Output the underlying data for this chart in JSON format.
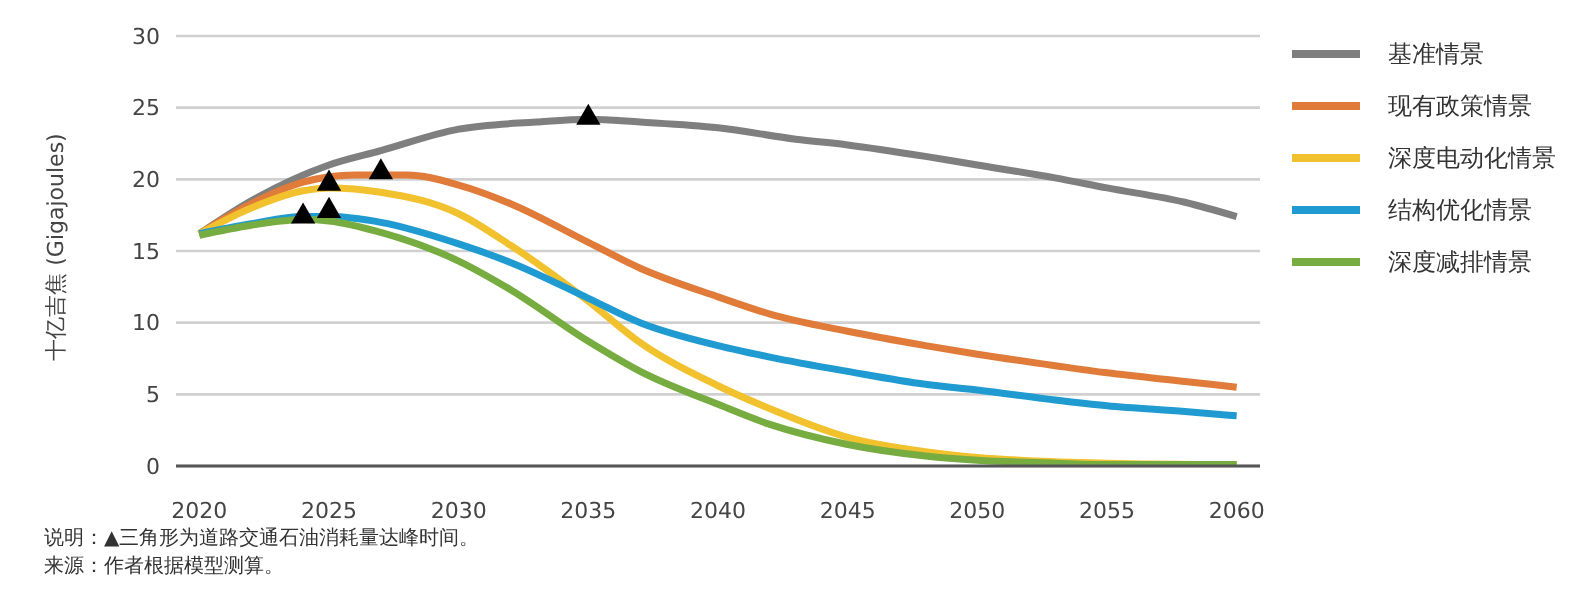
{
  "chart_data": {
    "type": "line",
    "ylabel": "十亿吉焦 (Gigajoules)",
    "xlim": [
      2019.1,
      2060.9
    ],
    "xticks": [
      2020,
      2025,
      2030,
      2035,
      2040,
      2045,
      2050,
      2055,
      2060
    ],
    "ylim": [
      0,
      30
    ],
    "yticks": [
      0,
      5,
      10,
      15,
      20,
      25,
      30
    ],
    "grid": "y",
    "legend": "right",
    "series": [
      {
        "name": "基准情景",
        "color": "#7f7f7f",
        "marker": "none",
        "x": [
          2020,
          2022,
          2025,
          2027,
          2030,
          2033,
          2035,
          2037,
          2040,
          2043,
          2045,
          2048,
          2050,
          2053,
          2055,
          2058,
          2060
        ],
        "values": [
          16.2,
          18.5,
          21,
          22,
          23.5,
          24,
          24.2,
          24,
          23.6,
          22.8,
          22.4,
          21.6,
          21,
          20.1,
          19.4,
          18.4,
          17.4
        ]
      },
      {
        "name": "现有政策情景",
        "color": "#e07b39",
        "marker": "none",
        "x": [
          2020,
          2022,
          2024,
          2026,
          2028,
          2030,
          2032,
          2035,
          2037,
          2040,
          2042,
          2045,
          2048,
          2050,
          2053,
          2055,
          2058,
          2060
        ],
        "values": [
          16.2,
          18.3,
          19.8,
          20.3,
          20.3,
          19.6,
          18.3,
          15.6,
          13.8,
          11.8,
          10.6,
          9.4,
          8.4,
          7.8,
          7,
          6.5,
          5.9,
          5.5
        ]
      },
      {
        "name": "深度电动化情景",
        "color": "#f2c12e",
        "marker": "none",
        "x": [
          2020,
          2022,
          2024,
          2025,
          2027,
          2030,
          2032,
          2035,
          2037,
          2040,
          2042,
          2045,
          2048,
          2050,
          2053,
          2055,
          2060
        ],
        "values": [
          16.2,
          18,
          19.2,
          19.4,
          19.1,
          17.6,
          15.4,
          11.5,
          8.6,
          5.6,
          4,
          2,
          1,
          0.6,
          0.3,
          0.2,
          0.1
        ]
      },
      {
        "name": "结构优化情景",
        "color": "#1f9bd1",
        "marker": "none",
        "x": [
          2020,
          2022,
          2024,
          2025,
          2027,
          2030,
          2032,
          2035,
          2037,
          2040,
          2042,
          2045,
          2048,
          2050,
          2053,
          2055,
          2058,
          2060
        ],
        "values": [
          16.2,
          16.9,
          17.4,
          17.4,
          17,
          15.5,
          14.2,
          11.7,
          10,
          8.4,
          7.6,
          6.6,
          5.7,
          5.3,
          4.6,
          4.2,
          3.8,
          3.5
        ]
      },
      {
        "name": "深度减排情景",
        "color": "#77ac41",
        "marker": "none",
        "x": [
          2020,
          2022,
          2024,
          2025,
          2027,
          2030,
          2032,
          2035,
          2037,
          2040,
          2042,
          2045,
          2048,
          2050,
          2053,
          2055,
          2060
        ],
        "values": [
          16.1,
          16.8,
          17.2,
          17.1,
          16.3,
          14.3,
          12.3,
          8.7,
          6.6,
          4.3,
          2.9,
          1.5,
          0.7,
          0.4,
          0.2,
          0.1,
          0.1
        ]
      },
      {
        "type": "scatter",
        "color": "#000000",
        "marker": "triangle",
        "x": [
          2024,
          2025,
          2025,
          2027,
          2035
        ],
        "values": [
          17.4,
          17.8,
          19.7,
          20.5,
          24.3
        ]
      }
    ],
    "annotations": [
      "说明：▲三角形为道路交通石油消耗量达峰时间。",
      "来源：作者根据模型测算。"
    ]
  }
}
